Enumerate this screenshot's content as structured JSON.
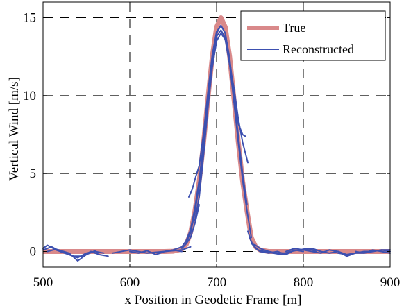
{
  "chart_data": {
    "type": "line",
    "xlabel": "x Position in Geodetic Frame [m]",
    "ylabel": "Vertical Wind [m/s]",
    "xlim": [
      500,
      900
    ],
    "ylim": [
      -1,
      16
    ],
    "xticks": [
      500,
      600,
      700,
      800,
      900
    ],
    "yticks": [
      0,
      5,
      10,
      15
    ],
    "grid": true,
    "grid_style": "dashed",
    "legend": "top-right",
    "legend_items": [
      {
        "label": "True",
        "color": "#d9898a"
      },
      {
        "label": "Reconstructed",
        "color": "#3d50b0"
      }
    ],
    "series": [
      {
        "name": "True",
        "color": "#d9898a",
        "x": [
          500,
          640,
          650,
          660,
          665,
          670,
          675,
          680,
          685,
          690,
          695,
          700,
          705,
          710,
          715,
          720,
          725,
          730,
          735,
          740,
          745,
          750,
          760,
          800,
          900
        ],
        "y": [
          0,
          0,
          0.02,
          0.15,
          0.45,
          1.2,
          2.6,
          4.5,
          7.0,
          9.8,
          12.5,
          14.4,
          15.0,
          14.4,
          12.5,
          9.8,
          7.0,
          4.5,
          2.6,
          0.9,
          0.3,
          0.1,
          0,
          0,
          0
        ]
      },
      {
        "name": "Reconstructed",
        "color": "#3d50b0",
        "segments": [
          {
            "x": [
              500,
              510,
              520,
              530,
              540,
              550,
              560,
              570
            ],
            "y": [
              0.1,
              0.3,
              0.0,
              -0.2,
              -0.4,
              -0.1,
              0.0,
              -0.1
            ]
          },
          {
            "x": [
              500,
              505,
              515,
              525,
              535,
              545,
              555,
              565,
              575
            ],
            "y": [
              0.2,
              0.4,
              0.1,
              -0.1,
              -0.3,
              -0.3,
              0.0,
              -0.2,
              -0.3
            ]
          },
          {
            "x": [
              505,
              515,
              530,
              540,
              550,
              560
            ],
            "y": [
              0.0,
              0.15,
              -0.1,
              -0.6,
              -0.2,
              0.05
            ]
          },
          {
            "x": [
              580,
              600,
              620,
              640,
              660,
              670
            ],
            "y": [
              -0.1,
              0.1,
              -0.1,
              0.0,
              0.1,
              0.3
            ]
          },
          {
            "x": [
              600,
              610,
              620,
              630,
              640,
              650,
              660
            ],
            "y": [
              0.0,
              -0.1,
              0.05,
              -0.2,
              0.0,
              0.1,
              0.0
            ]
          },
          {
            "x": [
              640,
              650,
              660,
              665,
              670,
              675,
              680,
              685,
              690,
              695,
              700,
              705,
              710,
              715,
              720,
              725,
              730,
              735,
              740
            ],
            "y": [
              0.0,
              0.1,
              0.3,
              0.7,
              1.4,
              2.8,
              4.6,
              7.0,
              9.8,
              12.2,
              13.8,
              14.2,
              13.7,
              12.0,
              9.6,
              7.0,
              4.6,
              2.6,
              0.9
            ]
          },
          {
            "x": [
              665,
              670,
              675,
              680,
              685,
              690,
              695,
              700,
              705,
              710,
              715,
              720,
              725,
              730,
              735
            ],
            "y": [
              0.6,
              1.2,
              2.5,
              4.3,
              6.8,
              9.6,
              12.3,
              14.0,
              14.5,
              14.0,
              12.4,
              9.9,
              7.4,
              5.0,
              3.0
            ]
          },
          {
            "x": [
              668,
              672,
              676,
              680,
              685,
              690,
              695,
              700,
              705,
              710,
              715,
              720,
              725,
              730,
              733
            ],
            "y": [
              3.5,
              4.0,
              4.8,
              5.5,
              7.6,
              10.2,
              12.6,
              14.1,
              14.5,
              14.0,
              12.3,
              10.1,
              8.2,
              7.5,
              7.4
            ]
          },
          {
            "x": [
              675,
              680,
              685,
              690,
              695,
              700,
              705,
              710,
              715,
              720,
              725,
              730,
              736
            ],
            "y": [
              2.0,
              3.5,
              6.2,
              9.2,
              11.8,
              13.5,
              14.0,
              13.6,
              12.0,
              10.5,
              8.5,
              7.0,
              5.7
            ]
          },
          {
            "x": [
              660,
              665,
              670,
              675,
              680
            ],
            "y": [
              0.2,
              0.5,
              0.9,
              1.8,
              3.0
            ]
          },
          {
            "x": [
              736,
              740,
              745,
              750,
              760,
              770,
              780,
              790,
              800
            ],
            "y": [
              1.3,
              0.6,
              0.2,
              0.0,
              -0.1,
              0.0,
              -0.2,
              0.1,
              0.0
            ]
          },
          {
            "x": [
              738,
              742,
              748,
              755,
              765,
              775,
              785,
              795,
              805,
              815
            ],
            "y": [
              0.9,
              0.4,
              0.1,
              0.0,
              -0.1,
              -0.2,
              0.0,
              0.1,
              0.2,
              0.0
            ]
          },
          {
            "x": [
              740,
              745,
              750,
              760,
              770,
              780
            ],
            "y": [
              0.5,
              0.4,
              0.2,
              0.0,
              -0.1,
              -0.1
            ]
          },
          {
            "x": [
              780,
              790,
              800,
              810,
              820,
              830,
              840,
              850,
              860
            ],
            "y": [
              0.0,
              0.2,
              0.1,
              0.2,
              0.0,
              -0.1,
              0.0,
              -0.2,
              -0.1
            ]
          },
          {
            "x": [
              800,
              810,
              820,
              830,
              840,
              850,
              860,
              870,
              880,
              890,
              900
            ],
            "y": [
              0.1,
              0.0,
              -0.1,
              0.1,
              0.0,
              -0.3,
              -0.1,
              -0.1,
              0.1,
              0.0,
              -0.1
            ]
          },
          {
            "x": [
              840,
              850,
              860,
              870,
              880,
              890,
              900
            ],
            "y": [
              -0.1,
              -0.2,
              -0.1,
              0.0,
              0.0,
              0.1,
              0.0
            ]
          },
          {
            "x": [
              860,
              870,
              880,
              890,
              900
            ],
            "y": [
              0.0,
              -0.1,
              0.0,
              0.1,
              0.1
            ]
          }
        ]
      }
    ]
  }
}
